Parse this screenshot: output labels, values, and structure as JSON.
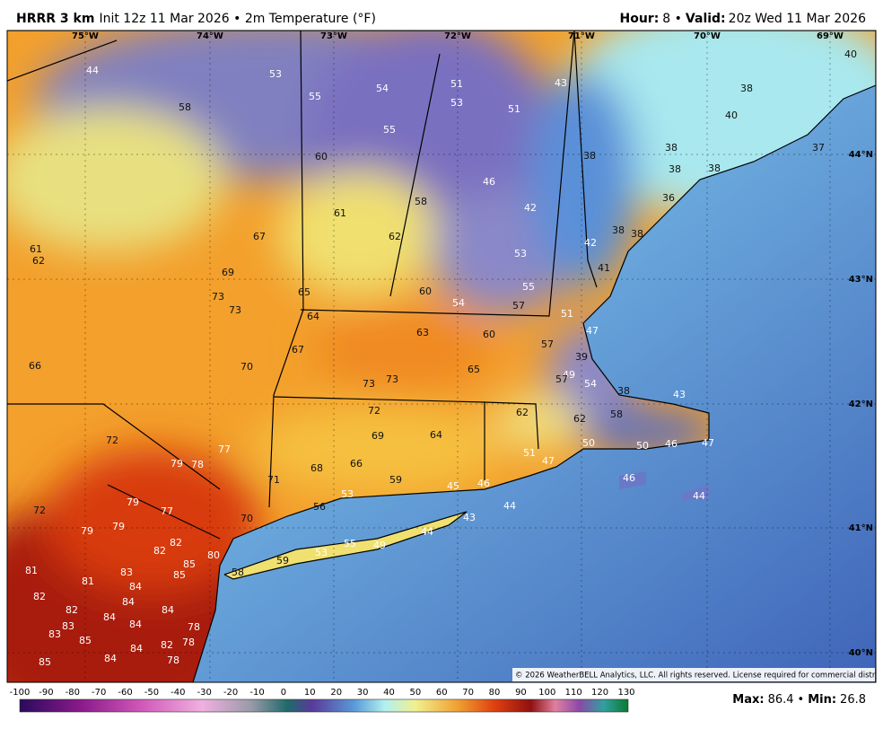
{
  "header": {
    "model": "HRRR 3 km",
    "description": "Init 12z 11 Mar 2026 • 2m Temperature (°F)",
    "hour_label": "Hour:",
    "hour": "8 •",
    "valid_label": "Valid:",
    "valid": "20z Wed 11 Mar 2026"
  },
  "longitudes": [
    "75°W",
    "74°W",
    "73°W",
    "72°W",
    "71°W",
    "70°W",
    "69°W"
  ],
  "latitudes": [
    "44°N",
    "43°N",
    "42°N",
    "41°N",
    "40°N"
  ],
  "temperatures": [
    44,
    58,
    53,
    55,
    54,
    51,
    53,
    51,
    43,
    55,
    60,
    38,
    46,
    42,
    58,
    61,
    67,
    62,
    38,
    38,
    42,
    61,
    62,
    69,
    53,
    41,
    73,
    73,
    65,
    60,
    54,
    55,
    57,
    51,
    64,
    47,
    63,
    60,
    57,
    67,
    66,
    70,
    65,
    39,
    49,
    57,
    54,
    73,
    73,
    38,
    43,
    72,
    62,
    62,
    58,
    69,
    64,
    72,
    77,
    50,
    50,
    46,
    47,
    79,
    78,
    68,
    66,
    59,
    47,
    51,
    71,
    45,
    46,
    46,
    79,
    53,
    77,
    56,
    72,
    44,
    44,
    43,
    79,
    70,
    79,
    44,
    55,
    49,
    82,
    82,
    53,
    80,
    59,
    85,
    85,
    83,
    58,
    81,
    81,
    84,
    82,
    84,
    84,
    82,
    84,
    84,
    83,
    78,
    83,
    85,
    82,
    78,
    84,
    84,
    78,
    85,
    40,
    38,
    40,
    38,
    38,
    38,
    37,
    36
  ],
  "copyright": "© 2026 WeatherBELL Analytics, LLC. All rights reserved. License required for commercial distribution.",
  "colorbar": {
    "ticks": [
      -100,
      -90,
      -80,
      -70,
      -60,
      -50,
      -40,
      -30,
      -20,
      -10,
      0,
      10,
      20,
      30,
      40,
      50,
      60,
      70,
      80,
      90,
      100,
      110,
      120,
      130
    ]
  },
  "footer": {
    "max_label": "Max:",
    "max": 86.4,
    "separator": "•",
    "min_label": "Min:",
    "min": 26.8
  }
}
